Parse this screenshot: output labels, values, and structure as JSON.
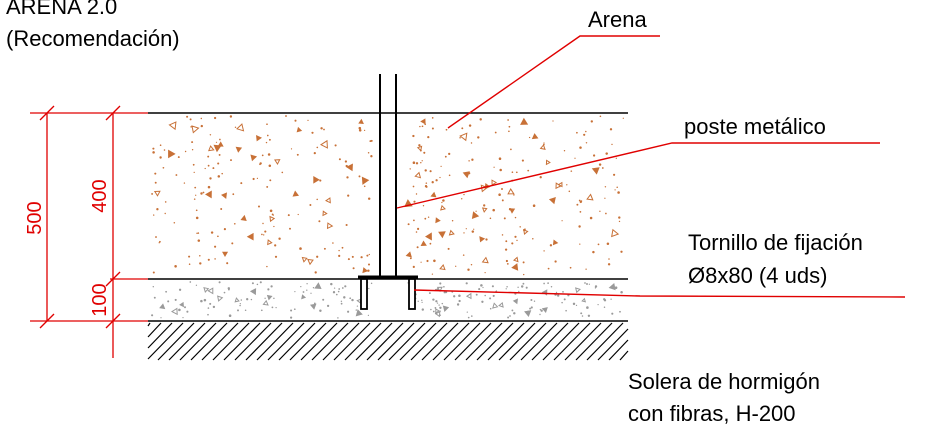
{
  "title": {
    "line1": "ARENA 2.0",
    "line2": "(Recomendación)"
  },
  "labels": {
    "arena": "Arena",
    "poste": "poste metálico",
    "tornillo_line1": "Tornillo de fijación",
    "tornillo_line2": "Ø8x80 (4 uds)",
    "solera_line1": "Solera de hormigón",
    "solera_line2": "con fibras, H-200"
  },
  "dimensions": {
    "total": "500",
    "sand_layer": "400",
    "base_layer": "100"
  },
  "colors": {
    "line": "#000000",
    "leader": "#e00000",
    "dimension": "#e00000",
    "sand_speckle": "#c87137",
    "concrete_speckle": "#9a9a9a"
  }
}
